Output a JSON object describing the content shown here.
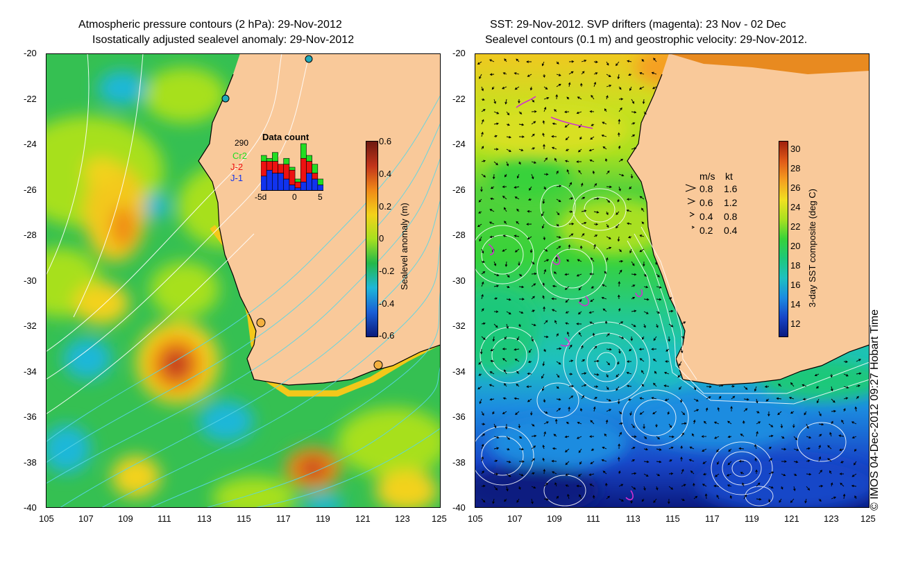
{
  "left_panel": {
    "title_line1": "Atmospheric pressure contours (2 hPa): 29-Nov-2012",
    "title_line2": "Isostatically adjusted sealevel anomaly: 29-Nov-2012",
    "lat_ticks": [
      "-20",
      "-22",
      "-24",
      "-26",
      "-28",
      "-30",
      "-32",
      "-34",
      "-36",
      "-38",
      "-40"
    ],
    "lon_ticks": [
      "105",
      "107",
      "109",
      "111",
      "113",
      "115",
      "117",
      "119",
      "121",
      "123",
      "125"
    ],
    "colorbar": {
      "label": "Sealevel anomaly (m)",
      "ticks": [
        "0.6",
        "0.4",
        "0.2",
        "0",
        "-0.2",
        "-0.4",
        "-0.6"
      ]
    },
    "data_count": {
      "title": "Data count",
      "total": "290",
      "series_labels": [
        "Cr2",
        "J-2",
        "J-1"
      ],
      "series_colors": [
        "#22dd22",
        "#ee1111",
        "#1133ee"
      ],
      "axis_labels": [
        "-5d",
        "0",
        "5"
      ],
      "bars": [
        {
          "j1": 5,
          "j2": 5,
          "cr2": 2
        },
        {
          "j1": 7,
          "j2": 3,
          "cr2": 1
        },
        {
          "j1": 6,
          "j2": 4,
          "cr2": 3
        },
        {
          "j1": 6,
          "j2": 3,
          "cr2": 0
        },
        {
          "j1": 4,
          "j2": 5,
          "cr2": 2
        },
        {
          "j1": 2,
          "j2": 5,
          "cr2": 1
        },
        {
          "j1": 1,
          "j2": 2,
          "cr2": 1
        },
        {
          "j1": 3,
          "j2": 8,
          "cr2": 5
        },
        {
          "j1": 6,
          "j2": 4,
          "cr2": 2
        },
        {
          "j1": 4,
          "j2": 2,
          "cr2": 3
        },
        {
          "j1": 2,
          "j2": 0,
          "cr2": 2
        }
      ]
    }
  },
  "right_panel": {
    "title_line1": "SST: 29-Nov-2012. SVP drifters (magenta): 23 Nov - 02 Dec",
    "title_line2": "Sealevel contours (0.1 m) and geostrophic velocity: 29-Nov-2012.",
    "lat_ticks": [
      "-20",
      "-22",
      "-24",
      "-26",
      "-28",
      "-30",
      "-32",
      "-34",
      "-36",
      "-38",
      "-40"
    ],
    "lon_ticks": [
      "105",
      "107",
      "109",
      "111",
      "113",
      "115",
      "117",
      "119",
      "121",
      "123",
      "125"
    ],
    "colorbar": {
      "label": "3-day SST composite (deg C)",
      "ticks": [
        "30",
        "28",
        "26",
        "24",
        "22",
        "20",
        "18",
        "16",
        "14",
        "12"
      ]
    },
    "velocity_legend": {
      "header_ms": "m/s",
      "header_kt": "kt",
      "rows": [
        {
          "ms": "0.8",
          "kt": "1.6"
        },
        {
          "ms": "0.6",
          "kt": "1.2"
        },
        {
          "ms": "0.4",
          "kt": "0.8"
        },
        {
          "ms": "0.2",
          "kt": "0.4"
        }
      ]
    }
  },
  "credit": "© IMOS 04-Dec-2012 09:27 Hobart Time",
  "colors": {
    "land": "#f9c99a",
    "ssa_ramp": [
      "#0a1a7a",
      "#1a5fd6",
      "#1fb7d8",
      "#22b84a",
      "#a7e01f",
      "#f3d21a",
      "#f08a18",
      "#c2341a",
      "#6e1a10"
    ],
    "sst_ramp": [
      "#0a1a80",
      "#1846c8",
      "#1c8ce0",
      "#1ec0c0",
      "#1ec87a",
      "#37d23a",
      "#a8e020",
      "#f0e020",
      "#f5a020",
      "#e05a18",
      "#a0200c"
    ]
  }
}
